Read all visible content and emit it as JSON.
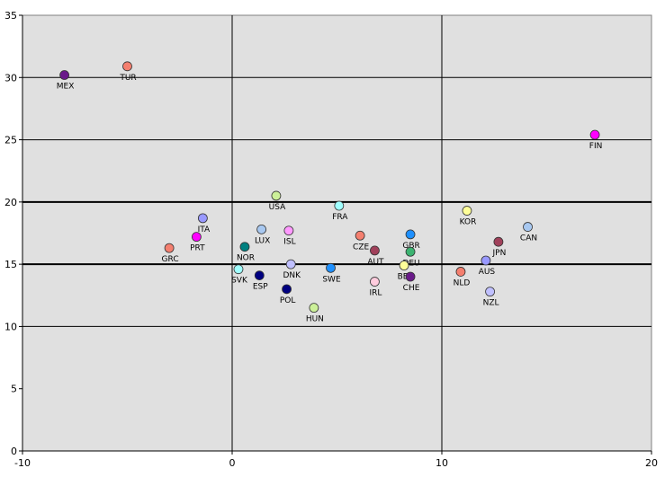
{
  "chart_data": {
    "type": "scatter",
    "title": "",
    "xlabel": "",
    "ylabel": "",
    "xlim": [
      -10,
      20
    ],
    "ylim": [
      0,
      35
    ],
    "x_ticks": [
      -10,
      0,
      10,
      20
    ],
    "y_ticks": [
      0,
      5,
      10,
      15,
      20,
      25,
      30,
      35
    ],
    "vertical_gridlines": [
      0,
      10
    ],
    "horizontal_gridlines": [
      10,
      25,
      30
    ],
    "reference_lines_y": [
      15,
      20
    ],
    "plot_background": "#e0e0e0",
    "points": [
      {
        "label": "MEX",
        "x": -8.0,
        "y": 30.2,
        "color": "#6a1a8a"
      },
      {
        "label": "TUR",
        "x": -5.0,
        "y": 30.9,
        "color": "#f47f6f"
      },
      {
        "label": "FIN",
        "x": 17.3,
        "y": 25.4,
        "color": "#ff00ff"
      },
      {
        "label": "USA",
        "x": 2.1,
        "y": 20.5,
        "color": "#ccf099"
      },
      {
        "label": "FRA",
        "x": 5.1,
        "y": 19.7,
        "color": "#a0ffff"
      },
      {
        "label": "KOR",
        "x": 11.2,
        "y": 19.3,
        "color": "#ffff99"
      },
      {
        "label": "ITA",
        "x": -1.4,
        "y": 18.7,
        "color": "#9999ff"
      },
      {
        "label": "CAN",
        "x": 14.1,
        "y": 18.0,
        "color": "#a8c8f0"
      },
      {
        "label": "LUX",
        "x": 1.4,
        "y": 17.8,
        "color": "#a8c8f0"
      },
      {
        "label": "ISL",
        "x": 2.7,
        "y": 17.7,
        "color": "#ff99ff"
      },
      {
        "label": "GBR",
        "x": 8.5,
        "y": 17.4,
        "color": "#1e90ff"
      },
      {
        "label": "CZE",
        "x": 6.1,
        "y": 17.3,
        "color": "#f47f6f"
      },
      {
        "label": "PRT",
        "x": -1.7,
        "y": 17.2,
        "color": "#ff00ff"
      },
      {
        "label": "JPN",
        "x": 12.7,
        "y": 16.8,
        "color": "#a0405a"
      },
      {
        "label": "NOR",
        "x": 0.6,
        "y": 16.4,
        "color": "#008080"
      },
      {
        "label": "GRC",
        "x": -3.0,
        "y": 16.3,
        "color": "#f47f6f"
      },
      {
        "label": "AUT",
        "x": 6.8,
        "y": 16.1,
        "color": "#a0405a"
      },
      {
        "label": "DEU",
        "x": 8.5,
        "y": 16.0,
        "color": "#3cb371"
      },
      {
        "label": "AUS",
        "x": 12.1,
        "y": 15.3,
        "color": "#9999ff"
      },
      {
        "label": "DNK",
        "x": 2.8,
        "y": 15.0,
        "color": "#c0c0ff"
      },
      {
        "label": "BEL",
        "x": 8.2,
        "y": 14.9,
        "color": "#ffff99"
      },
      {
        "label": "SWE",
        "x": 4.7,
        "y": 14.7,
        "color": "#1e90ff"
      },
      {
        "label": "SVK",
        "x": 0.3,
        "y": 14.6,
        "color": "#a0ffff"
      },
      {
        "label": "NLD",
        "x": 10.9,
        "y": 14.4,
        "color": "#f47f6f"
      },
      {
        "label": "ESP",
        "x": 1.3,
        "y": 14.1,
        "color": "#000080"
      },
      {
        "label": "CHE",
        "x": 8.5,
        "y": 14.0,
        "color": "#6a1a8a"
      },
      {
        "label": "IRL",
        "x": 6.8,
        "y": 13.6,
        "color": "#ffccdd"
      },
      {
        "label": "POL",
        "x": 2.6,
        "y": 13.0,
        "color": "#000080"
      },
      {
        "label": "NZL",
        "x": 12.3,
        "y": 12.8,
        "color": "#c0c0ff"
      },
      {
        "label": "HUN",
        "x": 3.9,
        "y": 11.5,
        "color": "#ccf099"
      }
    ]
  }
}
